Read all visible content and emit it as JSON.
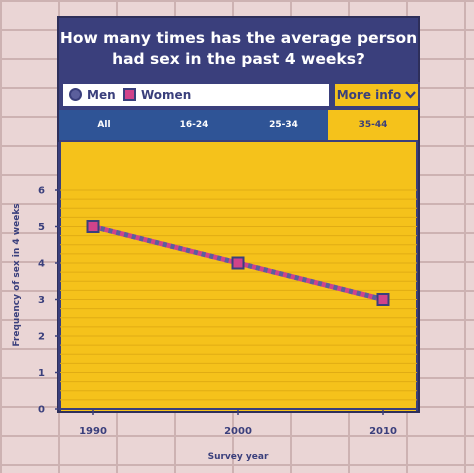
{
  "title": {
    "line1": "How many times has the average person",
    "line2": "had sex in the past 4 weeks?"
  },
  "legend": {
    "men_label": "Men",
    "women_label": "Women",
    "more_info_label": "More info"
  },
  "tabs": [
    {
      "label": "All",
      "active": false
    },
    {
      "label": "16-24",
      "active": false
    },
    {
      "label": "25-34",
      "active": false
    },
    {
      "label": "35-44",
      "active": true
    }
  ],
  "colors": {
    "navy": "#3a3f7c",
    "yellow": "#f5c21b",
    "men": "#5b5f9c",
    "women": "#d0438a",
    "tab_blue": "#2f5496",
    "brick": "#ead5d5"
  },
  "chart_data": {
    "type": "line",
    "x": [
      1990,
      2000,
      2010
    ],
    "series": [
      {
        "name": "Men",
        "values": [
          5,
          4,
          3
        ],
        "marker": "circle",
        "color": "#5b5f9c"
      },
      {
        "name": "Women",
        "values": [
          5,
          4,
          3
        ],
        "marker": "square",
        "color": "#d0438a"
      }
    ],
    "xlabel": "Survey year",
    "ylabel": "Frequency of sex in 4 weeks",
    "ylim": [
      0,
      6
    ],
    "yticks": [
      0,
      1,
      2,
      3,
      4,
      5,
      6
    ],
    "xticks": [
      1990,
      2000,
      2010
    ],
    "grid": true
  }
}
